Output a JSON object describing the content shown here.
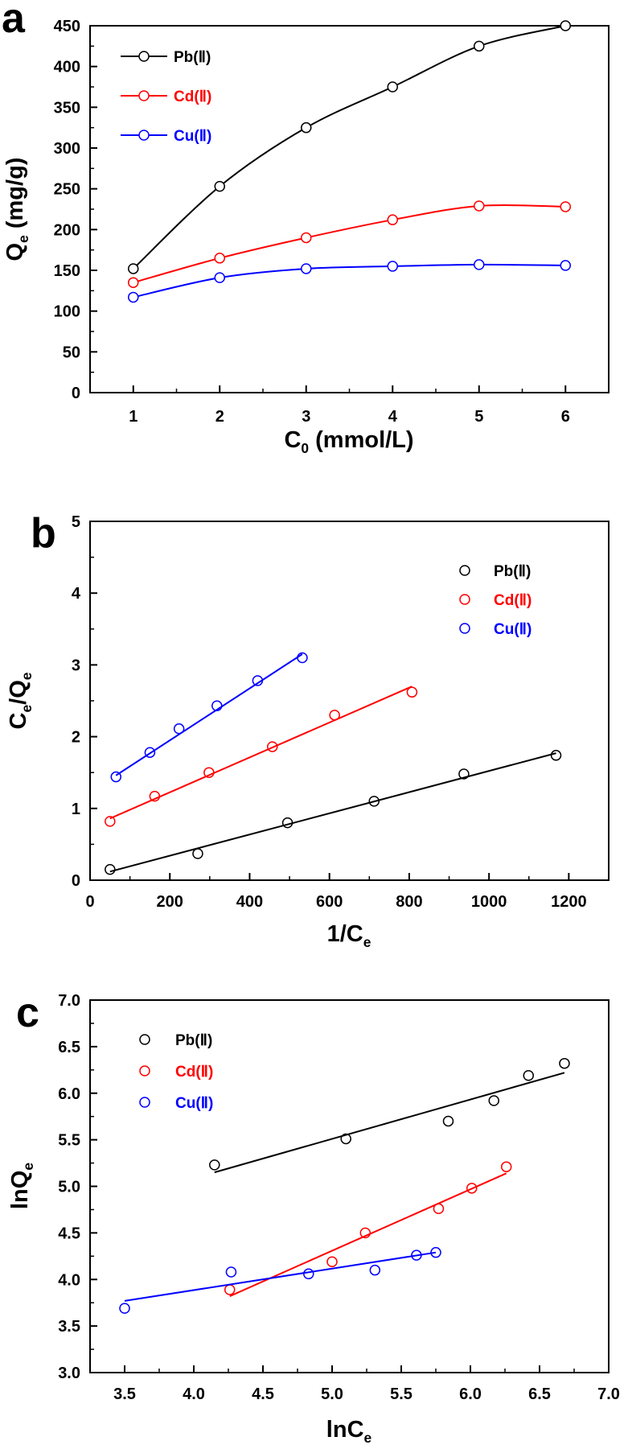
{
  "chart_data": [
    {
      "type": "line",
      "panel_label": "a",
      "title": "",
      "xlabel_main": "C",
      "xlabel_sub": "0",
      "xlabel_rest": " (mmol/L)",
      "ylabel_main": "Q",
      "ylabel_sub": "e",
      "ylabel_rest": " (mg/g)",
      "xlim": [
        0.5,
        6.5
      ],
      "ylim": [
        0,
        450
      ],
      "xticks": [
        1,
        2,
        3,
        4,
        5,
        6
      ],
      "xtick_labels": [
        "1",
        "2",
        "3",
        "4",
        "5",
        "6"
      ],
      "yticks": [
        0,
        50,
        100,
        150,
        200,
        250,
        300,
        350,
        400,
        450
      ],
      "ytick_labels": [
        "0",
        "50",
        "100",
        "150",
        "200",
        "250",
        "300",
        "350",
        "400",
        "450"
      ],
      "legend_position": "top-left",
      "x": [
        1,
        2,
        3,
        4,
        5,
        6
      ],
      "series": [
        {
          "name": "Pb(Ⅱ)",
          "color": "#000000",
          "values": [
            152,
            253,
            325,
            375,
            425,
            450
          ]
        },
        {
          "name": "Cd(Ⅱ)",
          "color": "#ff0000",
          "values": [
            135,
            165,
            190,
            212,
            229,
            228
          ]
        },
        {
          "name": "Cu(Ⅱ)",
          "color": "#0000ff",
          "values": [
            117,
            141,
            152,
            155,
            157,
            156
          ]
        }
      ]
    },
    {
      "type": "scatter",
      "panel_label": "b",
      "title": "",
      "xlabel_main": "1/C",
      "xlabel_sub": "e",
      "xlabel_rest": "",
      "ylabel_main": "C",
      "ylabel_sub": "e",
      "ylabel_main2": "/Q",
      "ylabel_sub2": "e",
      "xlim": [
        0,
        1300
      ],
      "ylim": [
        0,
        5
      ],
      "xticks": [
        0,
        200,
        400,
        600,
        800,
        1000,
        1200
      ],
      "xtick_labels": [
        "0",
        "200",
        "400",
        "600",
        "800",
        "1000",
        "1200"
      ],
      "yticks": [
        0,
        1,
        2,
        3,
        4,
        5
      ],
      "ytick_labels": [
        "0",
        "1",
        "2",
        "3",
        "4",
        "5"
      ],
      "legend_position": "top-right",
      "series": [
        {
          "name": "Pb(Ⅱ)",
          "color": "#000000",
          "x": [
            50,
            270,
            495,
            712,
            937,
            1168
          ],
          "values": [
            0.15,
            0.37,
            0.8,
            1.1,
            1.48,
            1.74
          ],
          "fit": [
            [
              50,
              0.12
            ],
            [
              1168,
              1.77
            ]
          ]
        },
        {
          "name": "Cd(Ⅱ)",
          "color": "#ff0000",
          "x": [
            50,
            162,
            298,
            457,
            613,
            807
          ],
          "values": [
            0.82,
            1.17,
            1.5,
            1.86,
            2.3,
            2.62
          ],
          "fit": [
            [
              50,
              0.86
            ],
            [
              807,
              2.7
            ]
          ]
        },
        {
          "name": "Cu(Ⅱ)",
          "color": "#0000ff",
          "x": [
            65,
            150,
            223,
            318,
            420,
            532
          ],
          "values": [
            1.44,
            1.78,
            2.11,
            2.43,
            2.78,
            3.1
          ],
          "fit": [
            [
              65,
              1.46
            ],
            [
              532,
              3.15
            ]
          ]
        }
      ]
    },
    {
      "type": "scatter",
      "panel_label": "c",
      "title": "",
      "xlabel_main": "lnC",
      "xlabel_sub": "e",
      "xlabel_rest": "",
      "ylabel_main": "lnQ",
      "ylabel_sub": "e",
      "ylabel_rest": "",
      "xlim": [
        3.25,
        7.0
      ],
      "ylim": [
        3.0,
        7.0
      ],
      "xticks": [
        3.5,
        4.0,
        4.5,
        5.0,
        5.5,
        6.0,
        6.5,
        7.0
      ],
      "xtick_labels": [
        "3.5",
        "4.0",
        "4.5",
        "5.0",
        "5.5",
        "6.0",
        "6.5",
        "7.0"
      ],
      "yticks": [
        3.0,
        3.5,
        4.0,
        4.5,
        5.0,
        5.5,
        6.0,
        6.5,
        7.0
      ],
      "ytick_labels": [
        "3.0",
        "3.5",
        "4.0",
        "4.5",
        "5.0",
        "5.5",
        "6.0",
        "6.5",
        "7.0"
      ],
      "legend_position": "top-left",
      "series": [
        {
          "name": "Pb(Ⅱ)",
          "color": "#000000",
          "x": [
            4.15,
            5.1,
            5.84,
            6.17,
            6.42,
            6.68
          ],
          "values": [
            5.23,
            5.51,
            5.7,
            5.92,
            6.19,
            6.32
          ],
          "fit": [
            [
              4.15,
              5.15
            ],
            [
              6.68,
              6.22
            ]
          ]
        },
        {
          "name": "Cd(Ⅱ)",
          "color": "#ff0000",
          "x": [
            4.26,
            5.0,
            5.24,
            5.77,
            6.01,
            6.26
          ],
          "values": [
            3.89,
            4.19,
            4.5,
            4.76,
            4.98,
            5.21
          ],
          "fit": [
            [
              4.26,
              3.82
            ],
            [
              6.26,
              5.14
            ]
          ]
        },
        {
          "name": "Cu(Ⅱ)",
          "color": "#0000ff",
          "x": [
            3.5,
            4.27,
            4.83,
            5.31,
            5.61,
            5.75
          ],
          "values": [
            3.69,
            4.08,
            4.06,
            4.1,
            4.26,
            4.29
          ],
          "fit": [
            [
              3.5,
              3.77
            ],
            [
              5.75,
              4.29
            ]
          ]
        }
      ]
    }
  ]
}
